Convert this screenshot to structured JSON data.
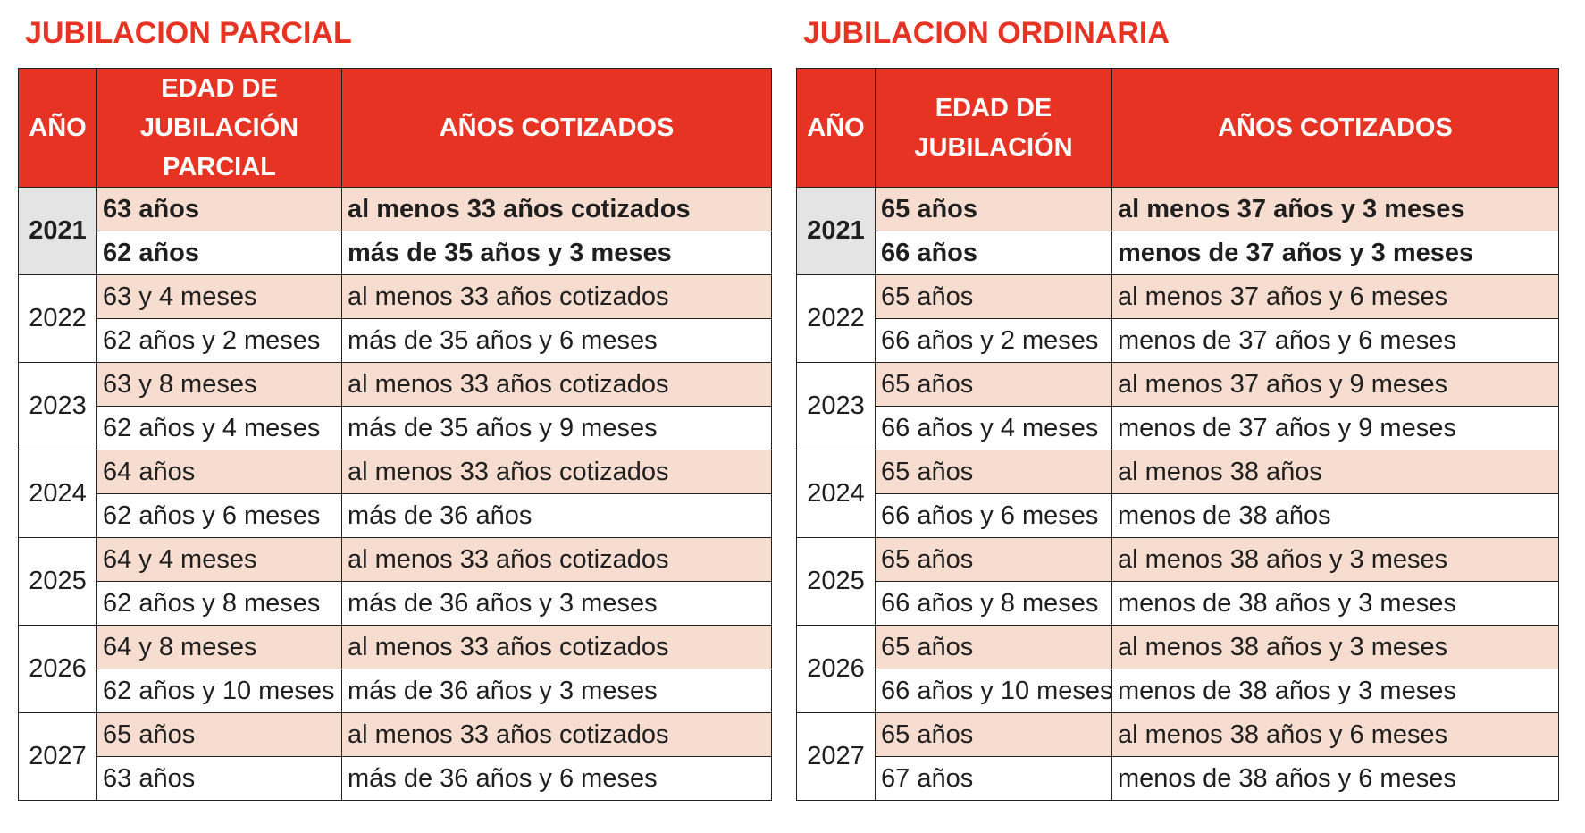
{
  "parcial": {
    "title": "JUBILACION PARCIAL",
    "headers": [
      "AÑO",
      "EDAD DE JUBILACIÓN PARCIAL",
      "AÑOS COTIZADOS"
    ],
    "rows": [
      {
        "year": "2021",
        "a1": "63 años",
        "b1": "al menos 33 años cotizados",
        "a2": "62 años",
        "b2": "más de 35 años y 3 meses"
      },
      {
        "year": "2022",
        "a1": "63 y 4 meses",
        "b1": "al menos 33 años cotizados",
        "a2": "62 años y 2 meses",
        "b2": "más de 35 años y 6 meses"
      },
      {
        "year": "2023",
        "a1": "63 y 8 meses",
        "b1": "al menos 33 años cotizados",
        "a2": "62 años y 4 meses",
        "b2": "más de 35 años y 9 meses"
      },
      {
        "year": "2024",
        "a1": "64 años",
        "b1": "al menos 33 años cotizados",
        "a2": "62 años y 6 meses",
        "b2": "más de 36 años"
      },
      {
        "year": "2025",
        "a1": "64 y 4 meses",
        "b1": "al menos 33 años cotizados",
        "a2": "62 años y 8 meses",
        "b2": "más de 36 años y 3 meses"
      },
      {
        "year": "2026",
        "a1": "64 y 8 meses",
        "b1": "al menos 33 años cotizados",
        "a2": "62 años y 10 meses",
        "b2": "más de 36 años y 3 meses"
      },
      {
        "year": "2027",
        "a1": "65 años",
        "b1": "al menos 33 años cotizados",
        "a2": "63 años",
        "b2": "más de 36 años y 6 meses"
      }
    ]
  },
  "ordinaria": {
    "title": "JUBILACION ORDINARIA",
    "headers": [
      "AÑO",
      "EDAD DE JUBILACIÓN",
      "AÑOS COTIZADOS"
    ],
    "rows": [
      {
        "year": "2021",
        "a1": "65 años",
        "b1": "al menos 37 años y 3 meses",
        "a2": "66 años",
        "b2": "menos de 37 años y 3 meses"
      },
      {
        "year": "2022",
        "a1": "65 años",
        "b1": "al menos 37 años y 6 meses",
        "a2": "66 años y 2 meses",
        "b2": "menos de 37 años y 6 meses"
      },
      {
        "year": "2023",
        "a1": "65 años",
        "b1": "al menos 37 años y 9 meses",
        "a2": "66 años y 4 meses",
        "b2": "menos de 37 años y 9 meses"
      },
      {
        "year": "2024",
        "a1": "65 años",
        "b1": "al menos 38 años",
        "a2": "66 años y 6 meses",
        "b2": "menos de 38 años"
      },
      {
        "year": "2025",
        "a1": "65 años",
        "b1": "al menos 38 años y 3 meses",
        "a2": "66 años y 8 meses",
        "b2": "menos de 38 años y 3 meses"
      },
      {
        "year": "2026",
        "a1": "65 años",
        "b1": "al menos 38 años y 3 meses",
        "a2": "66 años y 10 meses",
        "b2": "menos de 38 años y 3 meses"
      },
      {
        "year": "2027",
        "a1": "65 años",
        "b1": "al menos 38 años y 6 meses",
        "a2": "67 años",
        "b2": "menos de 38 años y 6 meses"
      }
    ]
  },
  "colors": {
    "header_bg": "#e63323",
    "title": "#e63323",
    "row_shade": "#f7ddd0",
    "year_highlight": "#e4e4e4"
  }
}
